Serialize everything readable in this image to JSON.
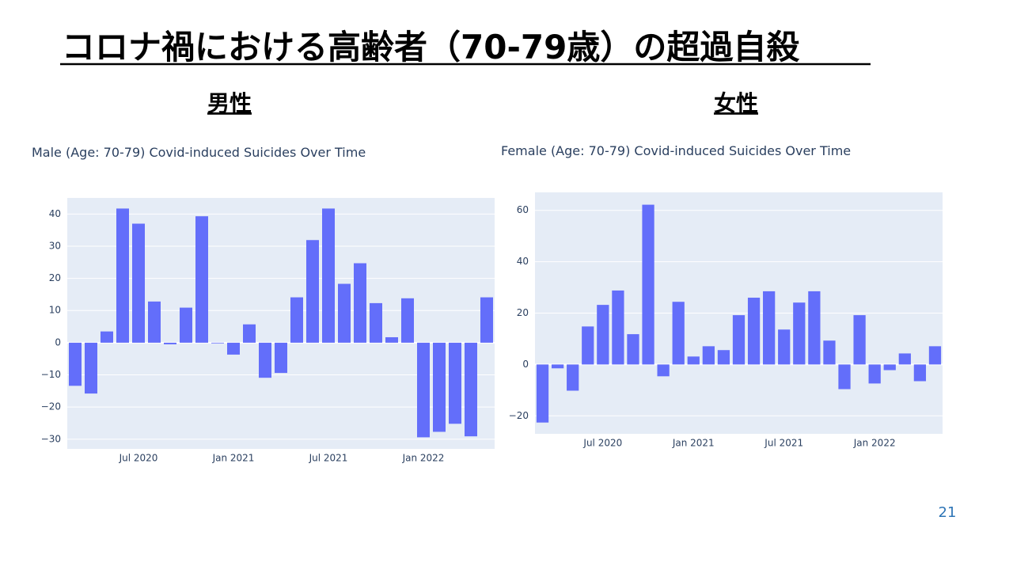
{
  "title": "コロナ禍における高齢者（70-79歳）の超過自殺",
  "headings": [
    "男性",
    "女性"
  ],
  "page_number": "21",
  "chart_data": [
    {
      "type": "bar",
      "title": "Male (Age: 70-79) Covid-induced Suicides Over Time",
      "color": "#636efa",
      "grid": true,
      "x": [
        "2020-03",
        "2020-04",
        "2020-05",
        "2020-06",
        "2020-07",
        "2020-08",
        "2020-09",
        "2020-10",
        "2020-11",
        "2020-12",
        "2021-01",
        "2021-02",
        "2021-03",
        "2021-04",
        "2021-05",
        "2021-06",
        "2021-07",
        "2021-08",
        "2021-09",
        "2021-10",
        "2021-11",
        "2021-12",
        "2022-01",
        "2022-02",
        "2022-03",
        "2022-04",
        "2022-05"
      ],
      "values": [
        -13.4,
        -15.8,
        3.5,
        41.7,
        37,
        12.8,
        -0.5,
        10.9,
        39.3,
        -0.2,
        -3.7,
        5.7,
        -10.9,
        -9.4,
        14.1,
        31.9,
        41.7,
        18.3,
        24.7,
        12.3,
        1.7,
        13.8,
        -29.4,
        -27.7,
        -25.2,
        -29.1,
        14.1
      ],
      "ylim": [
        -33,
        45
      ],
      "yticks": [
        {
          "value": -30,
          "label": "−30"
        },
        {
          "value": -20,
          "label": "−20"
        },
        {
          "value": -10,
          "label": "−10"
        },
        0,
        10,
        20,
        30,
        40
      ],
      "xticks": [
        {
          "value": "2020-07",
          "label": "Jul 2020"
        },
        {
          "value": "2021-01",
          "label": "Jan 2021"
        },
        {
          "value": "2021-07",
          "label": "Jul 2021"
        },
        {
          "value": "2022-01",
          "label": "Jan 2022"
        }
      ]
    },
    {
      "type": "bar",
      "title": "Female (Age: 70-79) Covid-induced Suicides Over Time",
      "color": "#636efa",
      "grid": true,
      "x": [
        "2020-03",
        "2020-04",
        "2020-05",
        "2020-06",
        "2020-07",
        "2020-08",
        "2020-09",
        "2020-10",
        "2020-11",
        "2020-12",
        "2021-01",
        "2021-02",
        "2021-03",
        "2021-04",
        "2021-05",
        "2021-06",
        "2021-07",
        "2021-08",
        "2021-09",
        "2021-10",
        "2021-11",
        "2021-12",
        "2022-01",
        "2022-02",
        "2022-03",
        "2022-04",
        "2022-05"
      ],
      "values": [
        -22.6,
        -1.5,
        -10.2,
        14.8,
        23.2,
        28.8,
        11.8,
        62.2,
        -4.6,
        24.4,
        3.1,
        7.1,
        5.6,
        19.2,
        26,
        28.5,
        13.6,
        24.1,
        28.5,
        9.3,
        -9.6,
        19.2,
        -7.4,
        -2.2,
        4.3,
        -6.5,
        7.1
      ],
      "ylim": [
        -27,
        67
      ],
      "yticks": [
        {
          "value": -20,
          "label": "−20"
        },
        0,
        20,
        40,
        60
      ],
      "xticks": [
        {
          "value": "2020-07",
          "label": "Jul 2020"
        },
        {
          "value": "2021-01",
          "label": "Jan 2021"
        },
        {
          "value": "2021-07",
          "label": "Jul 2021"
        },
        {
          "value": "2022-01",
          "label": "Jan 2022"
        }
      ]
    }
  ]
}
